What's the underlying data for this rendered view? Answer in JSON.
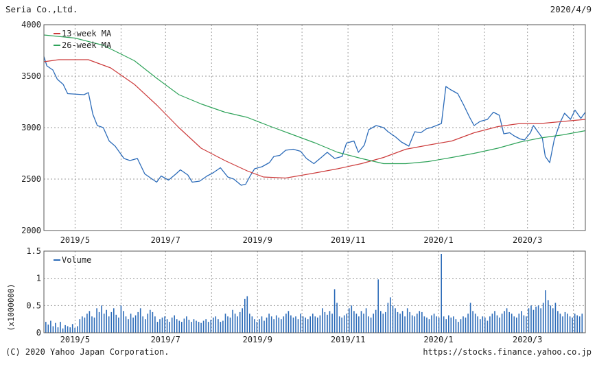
{
  "header": {
    "title": "Seria Co.,Ltd.",
    "date": "2020/4/9"
  },
  "footer": {
    "copyright": "(C) 2020 Yahoo Japan Corporation.",
    "url": "https://stocks.finance.yahoo.co.jp"
  },
  "colors": {
    "price": "#2a6ab8",
    "ma13": "#cc3b3b",
    "ma26": "#2fa35a",
    "volume": "#2a6ab8",
    "grid": "#9a9a9a",
    "frame": "#555555"
  },
  "chart_data": [
    {
      "type": "line",
      "title": "Seria Co.,Ltd.",
      "x_range": [
        "2019-04-10",
        "2020-04-09"
      ],
      "ylim": [
        2000,
        4000
      ],
      "y_ticks": [
        "2000",
        "2500",
        "3000",
        "3500",
        "4000"
      ],
      "x_ticks": [
        {
          "date": "2019-05-01",
          "label": "2019/5"
        },
        {
          "date": "2019-07-01",
          "label": "2019/7"
        },
        {
          "date": "2019-09-01",
          "label": "2019/9"
        },
        {
          "date": "2019-11-01",
          "label": "2019/11"
        },
        {
          "date": "2020-01-01",
          "label": "2020/1"
        },
        {
          "date": "2020-03-01",
          "label": "2020/3"
        }
      ],
      "grid": true,
      "legend": "top-left",
      "series": [
        {
          "name": "",
          "key": "price",
          "points": [
            [
              "2019-04-10",
              3690
            ],
            [
              "2019-04-12",
              3600
            ],
            [
              "2019-04-16",
              3560
            ],
            [
              "2019-04-19",
              3470
            ],
            [
              "2019-04-23",
              3420
            ],
            [
              "2019-04-26",
              3330
            ],
            [
              "2019-05-07",
              3320
            ],
            [
              "2019-05-10",
              3340
            ],
            [
              "2019-05-13",
              3130
            ],
            [
              "2019-05-16",
              3020
            ],
            [
              "2019-05-20",
              3000
            ],
            [
              "2019-05-24",
              2870
            ],
            [
              "2019-05-28",
              2820
            ],
            [
              "2019-06-03",
              2700
            ],
            [
              "2019-06-07",
              2680
            ],
            [
              "2019-06-12",
              2700
            ],
            [
              "2019-06-17",
              2550
            ],
            [
              "2019-06-21",
              2510
            ],
            [
              "2019-06-25",
              2470
            ],
            [
              "2019-06-28",
              2530
            ],
            [
              "2019-07-03",
              2490
            ],
            [
              "2019-07-08",
              2550
            ],
            [
              "2019-07-11",
              2590
            ],
            [
              "2019-07-16",
              2540
            ],
            [
              "2019-07-19",
              2470
            ],
            [
              "2019-07-24",
              2480
            ],
            [
              "2019-07-29",
              2530
            ],
            [
              "2019-08-02",
              2560
            ],
            [
              "2019-08-07",
              2610
            ],
            [
              "2019-08-12",
              2520
            ],
            [
              "2019-08-16",
              2500
            ],
            [
              "2019-08-21",
              2440
            ],
            [
              "2019-08-24",
              2450
            ],
            [
              "2019-08-27",
              2530
            ],
            [
              "2019-08-30",
              2600
            ],
            [
              "2019-09-04",
              2620
            ],
            [
              "2019-09-09",
              2660
            ],
            [
              "2019-09-12",
              2720
            ],
            [
              "2019-09-16",
              2730
            ],
            [
              "2019-09-20",
              2780
            ],
            [
              "2019-09-25",
              2790
            ],
            [
              "2019-09-30",
              2770
            ],
            [
              "2019-10-04",
              2700
            ],
            [
              "2019-10-09",
              2650
            ],
            [
              "2019-10-14",
              2710
            ],
            [
              "2019-10-18",
              2760
            ],
            [
              "2019-10-23",
              2700
            ],
            [
              "2019-10-28",
              2720
            ],
            [
              "2019-10-31",
              2850
            ],
            [
              "2019-11-05",
              2870
            ],
            [
              "2019-11-08",
              2760
            ],
            [
              "2019-11-12",
              2830
            ],
            [
              "2019-11-15",
              2980
            ],
            [
              "2019-11-20",
              3020
            ],
            [
              "2019-11-25",
              3000
            ],
            [
              "2019-11-28",
              2960
            ],
            [
              "2019-12-03",
              2910
            ],
            [
              "2019-12-07",
              2860
            ],
            [
              "2019-12-12",
              2820
            ],
            [
              "2019-12-16",
              2960
            ],
            [
              "2019-12-20",
              2950
            ],
            [
              "2019-12-24",
              2990
            ],
            [
              "2019-12-27",
              3000
            ],
            [
              "2020-01-03",
              3040
            ],
            [
              "2020-01-06",
              3400
            ],
            [
              "2020-01-09",
              3370
            ],
            [
              "2020-01-14",
              3330
            ],
            [
              "2020-01-18",
              3220
            ],
            [
              "2020-01-22",
              3100
            ],
            [
              "2020-01-25",
              3020
            ],
            [
              "2020-01-29",
              3060
            ],
            [
              "2020-02-03",
              3080
            ],
            [
              "2020-02-07",
              3150
            ],
            [
              "2020-02-11",
              3120
            ],
            [
              "2020-02-14",
              2940
            ],
            [
              "2020-02-18",
              2950
            ],
            [
              "2020-02-21",
              2920
            ],
            [
              "2020-02-25",
              2890
            ],
            [
              "2020-02-28",
              2880
            ],
            [
              "2020-03-03",
              2950
            ],
            [
              "2020-03-05",
              3020
            ],
            [
              "2020-03-09",
              2940
            ],
            [
              "2020-03-11",
              2900
            ],
            [
              "2020-03-13",
              2720
            ],
            [
              "2020-03-16",
              2660
            ],
            [
              "2020-03-19",
              2880
            ],
            [
              "2020-03-23",
              3050
            ],
            [
              "2020-03-26",
              3140
            ],
            [
              "2020-03-30",
              3080
            ],
            [
              "2020-04-02",
              3170
            ],
            [
              "2020-04-06",
              3090
            ],
            [
              "2020-04-09",
              3150
            ]
          ]
        },
        {
          "name": "13-week MA",
          "key": "ma13",
          "points": [
            [
              "2019-04-10",
              3640
            ],
            [
              "2019-04-20",
              3660
            ],
            [
              "2019-05-10",
              3660
            ],
            [
              "2019-05-25",
              3580
            ],
            [
              "2019-06-10",
              3420
            ],
            [
              "2019-06-25",
              3220
            ],
            [
              "2019-07-10",
              3000
            ],
            [
              "2019-07-25",
              2800
            ],
            [
              "2019-08-10",
              2680
            ],
            [
              "2019-08-25",
              2580
            ],
            [
              "2019-09-05",
              2520
            ],
            [
              "2019-09-20",
              2510
            ],
            [
              "2019-10-10",
              2560
            ],
            [
              "2019-10-25",
              2600
            ],
            [
              "2019-11-10",
              2650
            ],
            [
              "2019-11-25",
              2710
            ],
            [
              "2019-12-10",
              2790
            ],
            [
              "2019-12-25",
              2830
            ],
            [
              "2020-01-10",
              2870
            ],
            [
              "2020-01-25",
              2950
            ],
            [
              "2020-02-10",
              3010
            ],
            [
              "2020-02-25",
              3040
            ],
            [
              "2020-03-10",
              3040
            ],
            [
              "2020-03-25",
              3060
            ],
            [
              "2020-04-09",
              3080
            ]
          ]
        },
        {
          "name": "26-week MA",
          "key": "ma26",
          "points": [
            [
              "2019-04-10",
              3900
            ],
            [
              "2019-05-01",
              3870
            ],
            [
              "2019-05-20",
              3800
            ],
            [
              "2019-06-10",
              3650
            ],
            [
              "2019-06-25",
              3480
            ],
            [
              "2019-07-10",
              3320
            ],
            [
              "2019-07-25",
              3230
            ],
            [
              "2019-08-10",
              3150
            ],
            [
              "2019-08-25",
              3100
            ],
            [
              "2019-09-10",
              3010
            ],
            [
              "2019-09-25",
              2930
            ],
            [
              "2019-10-10",
              2850
            ],
            [
              "2019-10-25",
              2760
            ],
            [
              "2019-11-10",
              2700
            ],
            [
              "2019-11-25",
              2650
            ],
            [
              "2019-12-10",
              2650
            ],
            [
              "2019-12-25",
              2670
            ],
            [
              "2020-01-10",
              2710
            ],
            [
              "2020-01-25",
              2750
            ],
            [
              "2020-02-10",
              2800
            ],
            [
              "2020-02-25",
              2860
            ],
            [
              "2020-03-10",
              2900
            ],
            [
              "2020-03-25",
              2930
            ],
            [
              "2020-04-09",
              2970
            ]
          ]
        }
      ]
    },
    {
      "type": "bar",
      "x_range": [
        "2019-04-10",
        "2020-04-09"
      ],
      "ylim": [
        0,
        1.5
      ],
      "y_ticks": [
        "0",
        "0.5",
        "1",
        "1.5"
      ],
      "ylabel": "(x1000000)",
      "x_ticks": [
        {
          "date": "2019-05-01",
          "label": "2019/5"
        },
        {
          "date": "2019-07-01",
          "label": "2019/7"
        },
        {
          "date": "2019-09-01",
          "label": "2019/9"
        },
        {
          "date": "2019-11-01",
          "label": "2019/11"
        },
        {
          "date": "2020-01-01",
          "label": "2020/1"
        },
        {
          "date": "2020-03-01",
          "label": "2020/3"
        }
      ],
      "grid": true,
      "legend": "top-left",
      "series": [
        {
          "name": "Volume",
          "key": "volume",
          "values": [
            0.2,
            0.15,
            0.22,
            0.12,
            0.18,
            0.1,
            0.2,
            0.08,
            0.14,
            0.12,
            0.1,
            0.16,
            0.09,
            0.12,
            0.25,
            0.3,
            0.28,
            0.35,
            0.4,
            0.3,
            0.28,
            0.45,
            0.38,
            0.5,
            0.35,
            0.42,
            0.3,
            0.38,
            0.45,
            0.33,
            0.28,
            0.5,
            0.4,
            0.3,
            0.25,
            0.35,
            0.28,
            0.32,
            0.38,
            0.45,
            0.3,
            0.25,
            0.35,
            0.42,
            0.38,
            0.3,
            0.2,
            0.25,
            0.28,
            0.3,
            0.25,
            0.2,
            0.28,
            0.32,
            0.25,
            0.22,
            0.2,
            0.26,
            0.3,
            0.24,
            0.2,
            0.25,
            0.22,
            0.2,
            0.18,
            0.22,
            0.25,
            0.2,
            0.24,
            0.28,
            0.3,
            0.25,
            0.2,
            0.22,
            0.35,
            0.3,
            0.28,
            0.42,
            0.35,
            0.3,
            0.38,
            0.45,
            0.62,
            0.67,
            0.35,
            0.3,
            0.25,
            0.2,
            0.25,
            0.3,
            0.22,
            0.28,
            0.35,
            0.3,
            0.25,
            0.32,
            0.28,
            0.25,
            0.3,
            0.35,
            0.4,
            0.32,
            0.28,
            0.3,
            0.25,
            0.35,
            0.3,
            0.28,
            0.25,
            0.3,
            0.35,
            0.3,
            0.28,
            0.32,
            0.45,
            0.38,
            0.33,
            0.4,
            0.35,
            0.8,
            0.55,
            0.3,
            0.28,
            0.32,
            0.35,
            0.45,
            0.5,
            0.4,
            0.35,
            0.3,
            0.4,
            0.35,
            0.45,
            0.3,
            0.28,
            0.35,
            0.42,
            0.98,
            0.4,
            0.35,
            0.38,
            0.55,
            0.65,
            0.5,
            0.45,
            0.38,
            0.35,
            0.4,
            0.3,
            0.45,
            0.38,
            0.32,
            0.3,
            0.35,
            0.4,
            0.38,
            0.3,
            0.28,
            0.25,
            0.32,
            0.35,
            0.3,
            0.28,
            1.45,
            0.3,
            0.25,
            0.32,
            0.28,
            0.3,
            0.25,
            0.2,
            0.25,
            0.3,
            0.28,
            0.35,
            0.55,
            0.4,
            0.35,
            0.3,
            0.25,
            0.3,
            0.28,
            0.22,
            0.3,
            0.35,
            0.4,
            0.32,
            0.28,
            0.35,
            0.4,
            0.45,
            0.38,
            0.35,
            0.3,
            0.28,
            0.35,
            0.4,
            0.32,
            0.3,
            0.45,
            0.5,
            0.42,
            0.48,
            0.5,
            0.45,
            0.55,
            0.78,
            0.6,
            0.5,
            0.45,
            0.55,
            0.4,
            0.35,
            0.3,
            0.38,
            0.35,
            0.3,
            0.28,
            0.35,
            0.32,
            0.3,
            0.35
          ]
        }
      ]
    }
  ]
}
